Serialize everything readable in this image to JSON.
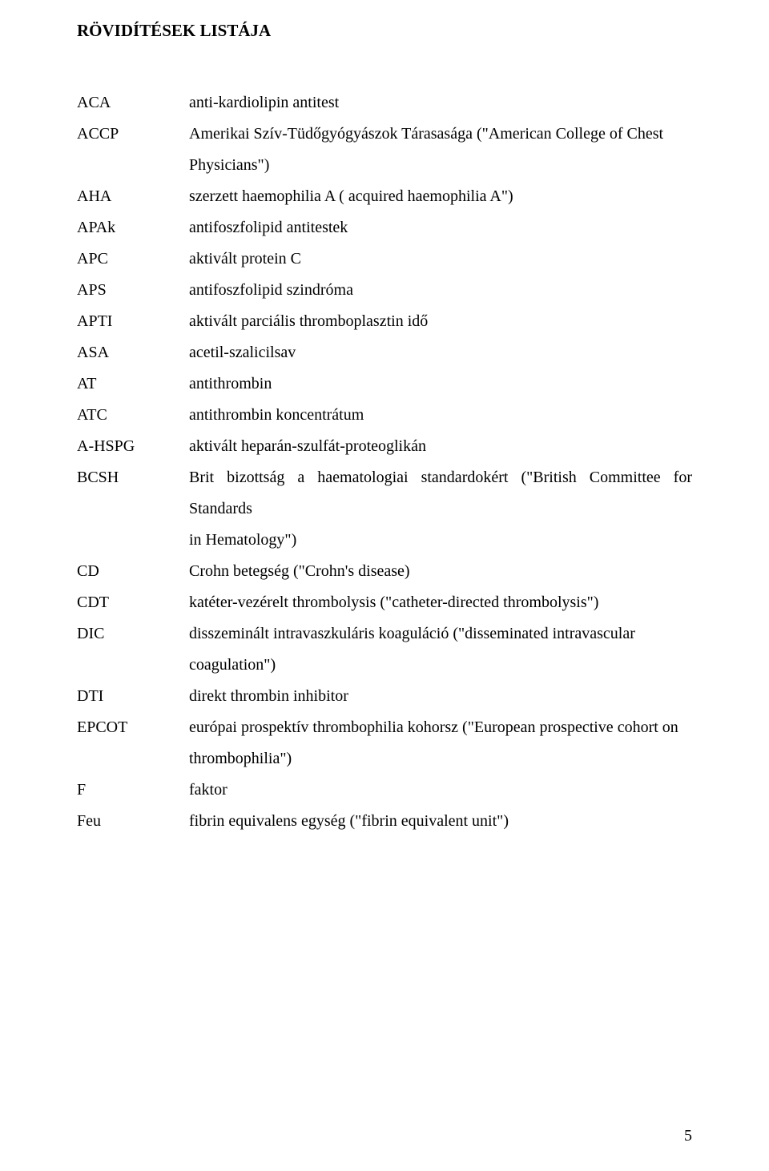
{
  "title": "RÖVIDÍTÉSEK LISTÁJA",
  "entries": [
    {
      "abbr": "ACA",
      "def": "anti-kardiolipin antitest"
    },
    {
      "abbr": "ACCP",
      "def": "Amerikai Szív-Tüdőgyógyászok Tárasasága (\"American College of Chest",
      "cont": "Physicians\")"
    },
    {
      "abbr": "AHA",
      "def": "szerzett haemophilia A ( acquired haemophilia A\")"
    },
    {
      "abbr": "APAk",
      "def": "antifoszfolipid antitestek"
    },
    {
      "abbr": "APC",
      "def": "aktivált protein C"
    },
    {
      "abbr": "APS",
      "def": "antifoszfolipid szindróma"
    },
    {
      "abbr": "APTI",
      "def": "aktivált parciális thromboplasztin idő"
    },
    {
      "abbr": "ASA",
      "def": "acetil-szalicilsav"
    },
    {
      "abbr": "AT",
      "def": "antithrombin"
    },
    {
      "abbr": "ATC",
      "def": "antithrombin koncentrátum"
    },
    {
      "abbr": "A-HSPG",
      "def": "aktivált heparán-szulfát-proteoglikán"
    },
    {
      "abbr": "BCSH",
      "def": "Brit bizottság a haematologiai standardokért (\"British Committee for Standards",
      "cont": "in Hematology\")"
    },
    {
      "abbr": "CD",
      "def": "Crohn betegség (\"Crohn's disease)"
    },
    {
      "abbr": "CDT",
      "def": "katéter-vezérelt thrombolysis (\"catheter-directed thrombolysis\")"
    },
    {
      "abbr": "DIC",
      "def": "disszeminált intravaszkuláris koaguláció (\"disseminated intravascular",
      "cont": " coagulation\")"
    },
    {
      "abbr": "DTI",
      "def": "direkt thrombin inhibitor"
    },
    {
      "abbr": "EPCOT",
      "def": "európai prospektív thrombophilia kohorsz (\"European prospective cohort on",
      "cont": "thrombophilia\")"
    },
    {
      "abbr": "F",
      "def": "faktor"
    },
    {
      "abbr": "Feu",
      "def": "fibrin equivalens egység (\"fibrin equivalent unit\")"
    }
  ],
  "pageNumber": "5",
  "colors": {
    "text": "#000000",
    "background": "#ffffff"
  },
  "fonts": {
    "family": "Times New Roman",
    "title_pt": 21,
    "body_pt": 20
  }
}
